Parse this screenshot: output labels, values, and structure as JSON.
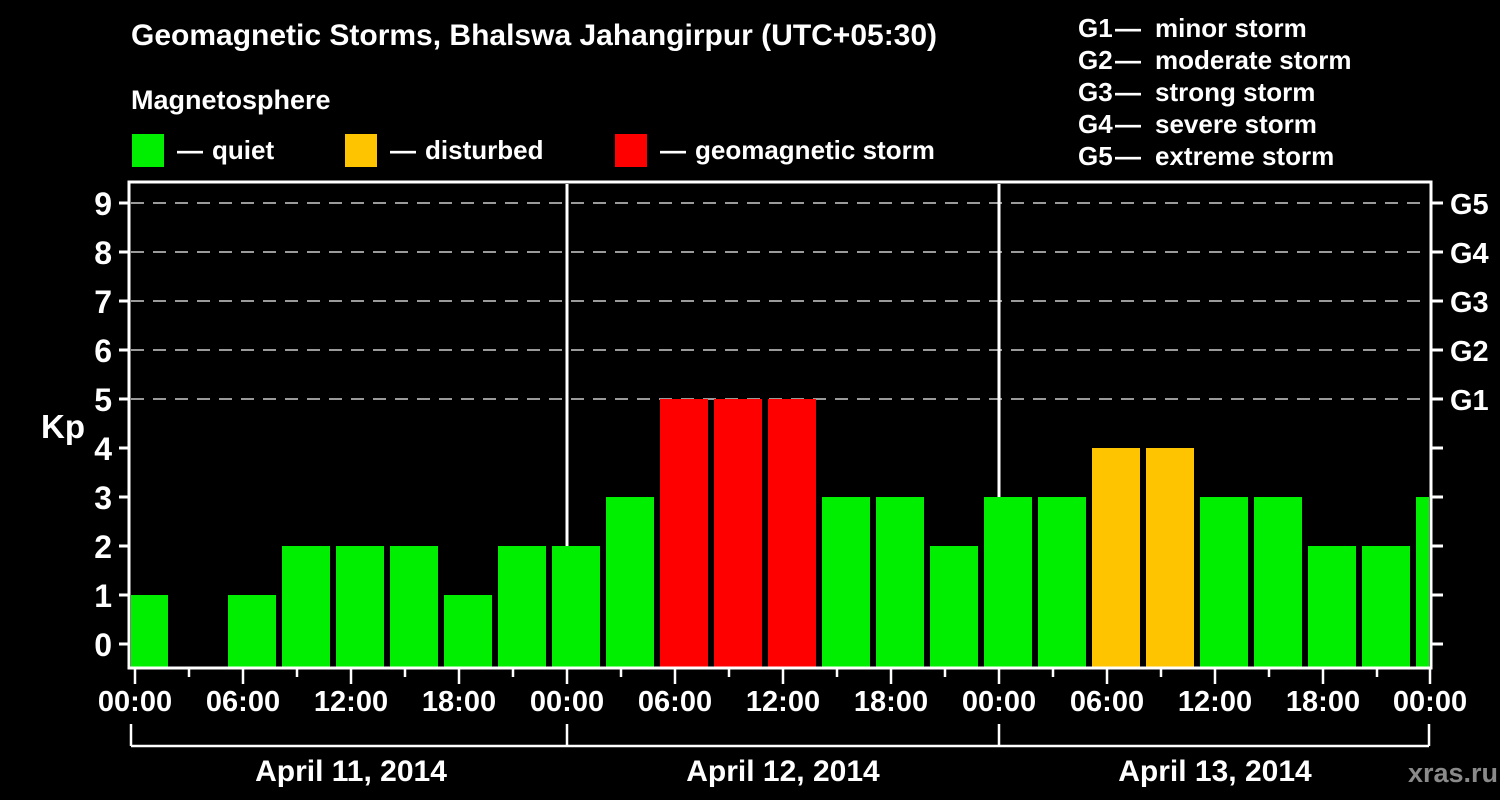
{
  "header": {
    "title": "Geomagnetic Storms, Bhalswa Jahangirpur (UTC+05:30)",
    "subtitle": "Magnetosphere",
    "legend_dash": "—",
    "legend": [
      {
        "key": "quiet",
        "label": "quiet"
      },
      {
        "key": "disturbed",
        "label": "disturbed"
      },
      {
        "key": "storm",
        "label": "geomagnetic storm"
      }
    ]
  },
  "storm_legend": [
    {
      "code": "G1",
      "label": "minor storm"
    },
    {
      "code": "G2",
      "label": "moderate storm"
    },
    {
      "code": "G3",
      "label": "strong storm"
    },
    {
      "code": "G4",
      "label": "severe storm"
    },
    {
      "code": "G5",
      "label": "extreme storm"
    }
  ],
  "watermark": "xras.ru",
  "chart_data": {
    "type": "bar",
    "title": "Geomagnetic Storms, Bhalswa Jahangirpur (UTC+05:30)",
    "subtitle": "Magnetosphere",
    "ylabel": "Kp",
    "ylim": [
      0,
      9
    ],
    "interval_hours": 3,
    "x_major_tick_hours": 6,
    "x_minor_tick_hours": 3,
    "grid": "dashed horizontal at storm levels only",
    "legend_position": "top",
    "days": [
      {
        "date": "April 11, 2014",
        "kp": [
          1,
          0,
          1,
          2,
          2,
          2,
          1,
          2
        ]
      },
      {
        "date": "April 12, 2014",
        "kp": [
          2,
          3,
          5,
          5,
          5,
          3,
          3,
          2
        ]
      },
      {
        "date": "April 13, 2014",
        "kp": [
          3,
          3,
          4,
          4,
          3,
          3,
          2,
          2
        ]
      }
    ],
    "partial_next_bar_kp": 3,
    "x_tick_labels": [
      "00:00",
      "06:00",
      "12:00",
      "18:00",
      "00:00",
      "06:00",
      "12:00",
      "18:00",
      "00:00",
      "06:00",
      "12:00",
      "18:00",
      "00:00"
    ],
    "y_tick_labels": [
      "0",
      "1",
      "2",
      "3",
      "4",
      "5",
      "6",
      "7",
      "8",
      "9"
    ],
    "gridlines_at": [
      5,
      6,
      7,
      8,
      9
    ],
    "right_axis": [
      {
        "kp": 5,
        "label": "G1"
      },
      {
        "kp": 6,
        "label": "G2"
      },
      {
        "kp": 7,
        "label": "G3"
      },
      {
        "kp": 8,
        "label": "G4"
      },
      {
        "kp": 9,
        "label": "G5"
      }
    ],
    "thresholds": {
      "disturbed_min": 4,
      "storm_min": 5
    },
    "colors": {
      "quiet": "#00ef00",
      "disturbed": "#ffc400",
      "storm": "#ff0000",
      "background": "#000000",
      "foreground": "#ffffff",
      "gridline": "#9a9a9a",
      "watermark": "#8a8a8a"
    }
  }
}
